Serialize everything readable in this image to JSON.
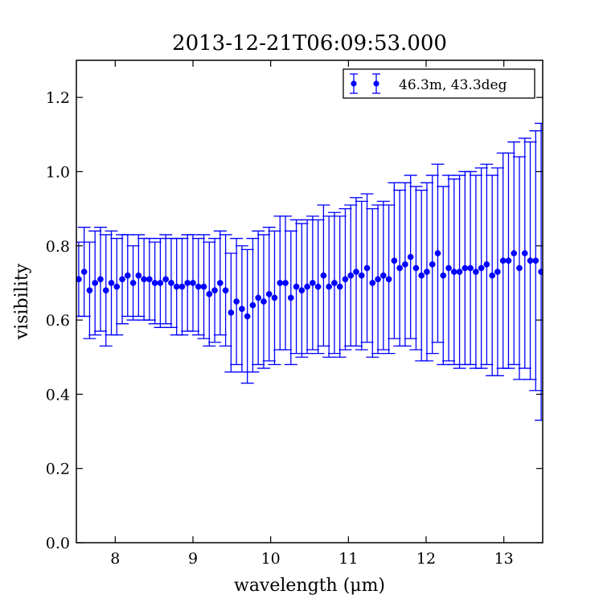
{
  "chart_data": {
    "type": "scatter",
    "title": "2013-12-21T06:09:53.000",
    "xlabel": "wavelength (μm)",
    "ylabel": "visibility",
    "xlim": [
      7.5,
      13.5
    ],
    "ylim": [
      0.0,
      1.3
    ],
    "xticks": [
      "8",
      "9",
      "10",
      "11",
      "12",
      "13"
    ],
    "yticks": [
      "0.0",
      "0.2",
      "0.4",
      "0.6",
      "0.8",
      "1.0",
      "1.2"
    ],
    "grid": false,
    "legend_position": "top-right",
    "color": "#0000ff",
    "series": [
      {
        "name": "46.3m, 43.3deg",
        "points": [
          [
            7.53,
            0.71,
            0.1
          ],
          [
            7.6,
            0.73,
            0.12
          ],
          [
            7.67,
            0.68,
            0.13
          ],
          [
            7.74,
            0.7,
            0.14
          ],
          [
            7.81,
            0.71,
            0.14
          ],
          [
            7.88,
            0.68,
            0.15
          ],
          [
            7.95,
            0.7,
            0.14
          ],
          [
            8.02,
            0.69,
            0.13
          ],
          [
            8.09,
            0.71,
            0.12
          ],
          [
            8.16,
            0.72,
            0.11
          ],
          [
            8.23,
            0.7,
            0.1
          ],
          [
            8.3,
            0.72,
            0.11
          ],
          [
            8.37,
            0.71,
            0.11
          ],
          [
            8.44,
            0.71,
            0.11
          ],
          [
            8.51,
            0.7,
            0.11
          ],
          [
            8.58,
            0.7,
            0.12
          ],
          [
            8.65,
            0.71,
            0.12
          ],
          [
            8.72,
            0.7,
            0.12
          ],
          [
            8.79,
            0.69,
            0.13
          ],
          [
            8.86,
            0.69,
            0.13
          ],
          [
            8.93,
            0.7,
            0.13
          ],
          [
            9.0,
            0.7,
            0.13
          ],
          [
            9.07,
            0.69,
            0.13
          ],
          [
            9.14,
            0.69,
            0.14
          ],
          [
            9.21,
            0.67,
            0.14
          ],
          [
            9.28,
            0.68,
            0.14
          ],
          [
            9.35,
            0.7,
            0.14
          ],
          [
            9.42,
            0.68,
            0.15
          ],
          [
            9.49,
            0.62,
            0.16
          ],
          [
            9.56,
            0.65,
            0.17
          ],
          [
            9.63,
            0.63,
            0.17
          ],
          [
            9.7,
            0.61,
            0.18
          ],
          [
            9.77,
            0.64,
            0.18
          ],
          [
            9.84,
            0.66,
            0.18
          ],
          [
            9.91,
            0.65,
            0.18
          ],
          [
            9.98,
            0.67,
            0.18
          ],
          [
            10.05,
            0.66,
            0.18
          ],
          [
            10.12,
            0.7,
            0.18
          ],
          [
            10.19,
            0.7,
            0.18
          ],
          [
            10.26,
            0.66,
            0.18
          ],
          [
            10.33,
            0.69,
            0.18
          ],
          [
            10.4,
            0.68,
            0.18
          ],
          [
            10.47,
            0.69,
            0.18
          ],
          [
            10.54,
            0.7,
            0.18
          ],
          [
            10.61,
            0.69,
            0.18
          ],
          [
            10.68,
            0.72,
            0.19
          ],
          [
            10.75,
            0.69,
            0.19
          ],
          [
            10.82,
            0.7,
            0.19
          ],
          [
            10.89,
            0.69,
            0.19
          ],
          [
            10.96,
            0.71,
            0.19
          ],
          [
            11.03,
            0.72,
            0.19
          ],
          [
            11.1,
            0.73,
            0.2
          ],
          [
            11.17,
            0.72,
            0.2
          ],
          [
            11.24,
            0.74,
            0.2
          ],
          [
            11.31,
            0.7,
            0.2
          ],
          [
            11.38,
            0.71,
            0.2
          ],
          [
            11.45,
            0.72,
            0.2
          ],
          [
            11.52,
            0.71,
            0.2
          ],
          [
            11.59,
            0.76,
            0.21
          ],
          [
            11.66,
            0.74,
            0.21
          ],
          [
            11.73,
            0.75,
            0.22
          ],
          [
            11.8,
            0.77,
            0.22
          ],
          [
            11.87,
            0.74,
            0.22
          ],
          [
            11.94,
            0.72,
            0.23
          ],
          [
            12.01,
            0.73,
            0.24
          ],
          [
            12.08,
            0.75,
            0.24
          ],
          [
            12.15,
            0.78,
            0.24
          ],
          [
            12.22,
            0.72,
            0.24
          ],
          [
            12.29,
            0.74,
            0.25
          ],
          [
            12.36,
            0.73,
            0.25
          ],
          [
            12.43,
            0.73,
            0.26
          ],
          [
            12.5,
            0.74,
            0.26
          ],
          [
            12.57,
            0.74,
            0.26
          ],
          [
            12.64,
            0.73,
            0.26
          ],
          [
            12.71,
            0.74,
            0.27
          ],
          [
            12.78,
            0.75,
            0.27
          ],
          [
            12.85,
            0.72,
            0.27
          ],
          [
            12.92,
            0.73,
            0.28
          ],
          [
            12.99,
            0.76,
            0.29
          ],
          [
            13.06,
            0.76,
            0.29
          ],
          [
            13.13,
            0.78,
            0.3
          ],
          [
            13.2,
            0.74,
            0.3
          ],
          [
            13.27,
            0.78,
            0.31
          ],
          [
            13.34,
            0.76,
            0.32
          ],
          [
            13.41,
            0.76,
            0.35
          ],
          [
            13.48,
            0.73,
            0.4
          ]
        ]
      }
    ]
  }
}
